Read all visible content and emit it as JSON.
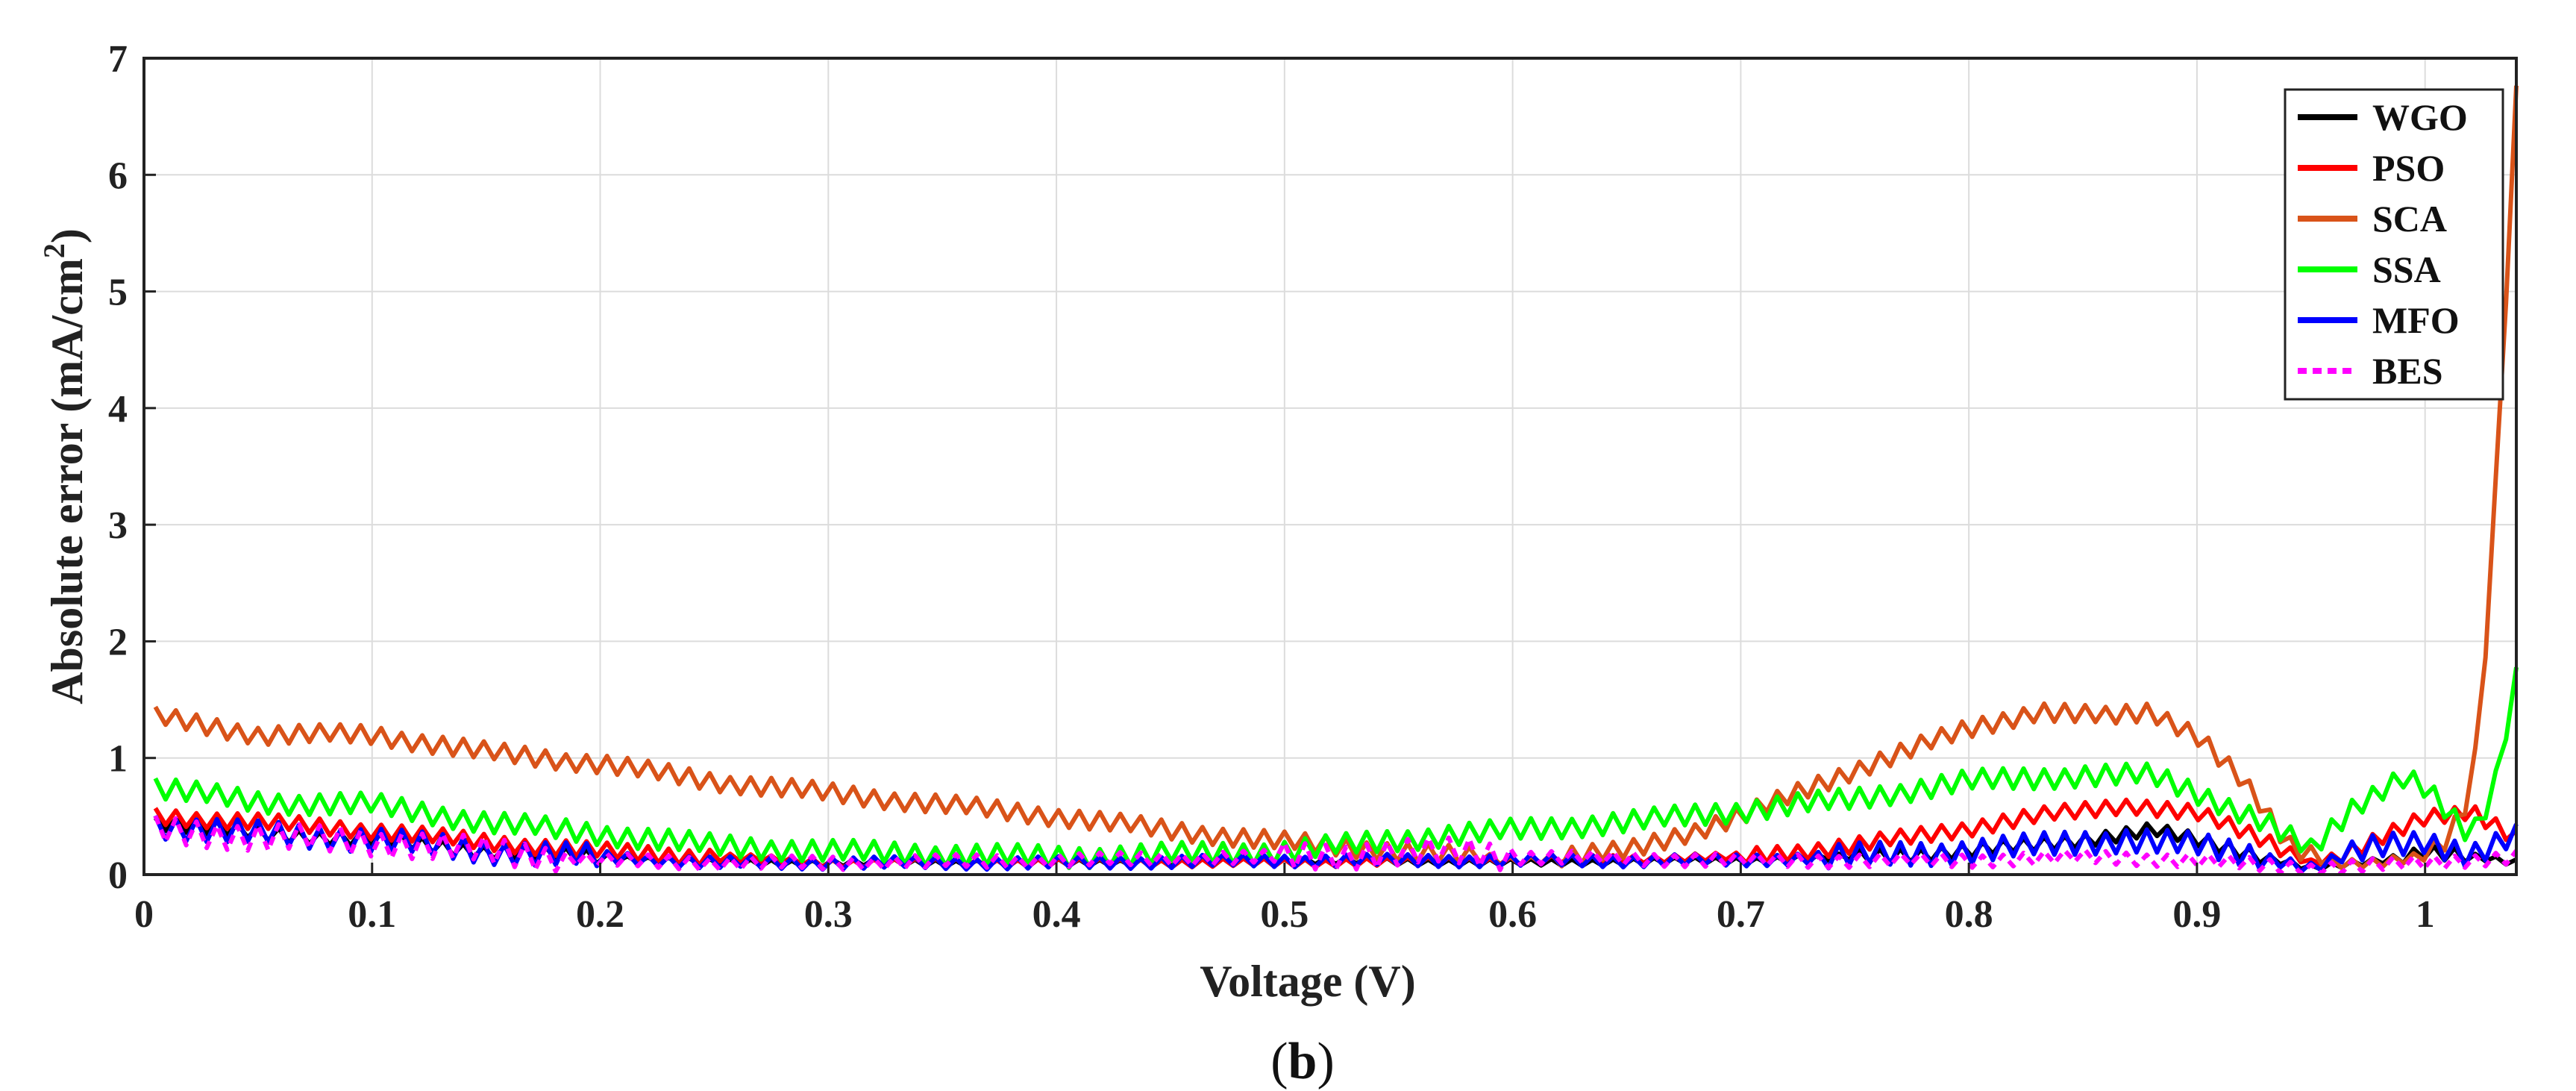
{
  "chart_data": {
    "type": "line",
    "title": "",
    "xlabel": "Voltage (V)",
    "ylabel_main": "Absolute error  (mA/cm",
    "ylabel_sup": "2",
    "ylabel_close": ")",
    "xlim": [
      0,
      1.04
    ],
    "ylim": [
      0,
      7
    ],
    "xticks": [
      0,
      0.1,
      0.2,
      0.3,
      0.4,
      0.5,
      0.6,
      0.7,
      0.8,
      0.9,
      1
    ],
    "xtick_labels": [
      "0",
      "0.1",
      "0.2",
      "0.3",
      "0.4",
      "0.5",
      "0.6",
      "0.7",
      "0.8",
      "0.9",
      "1"
    ],
    "yticks": [
      0,
      1,
      2,
      3,
      4,
      5,
      6,
      7
    ],
    "ytick_labels": [
      "0",
      "1",
      "2",
      "3",
      "4",
      "5",
      "6",
      "7"
    ],
    "grid": true,
    "legend_position": "top-right",
    "caption_open": "(",
    "caption_letter": "b",
    "caption_close": ")",
    "series": [
      {
        "name": "WGO",
        "color": "#000000",
        "dashed": false,
        "x": [
          0.005,
          0.05,
          0.1,
          0.15,
          0.2,
          0.25,
          0.3,
          0.4,
          0.5,
          0.6,
          0.7,
          0.75,
          0.8,
          0.85,
          0.87,
          0.88,
          0.9,
          0.93,
          0.95,
          0.98,
          1.0,
          1.02,
          1.04
        ],
        "y": [
          0.45,
          0.35,
          0.3,
          0.2,
          0.15,
          0.1,
          0.1,
          0.1,
          0.12,
          0.1,
          0.12,
          0.15,
          0.2,
          0.3,
          0.35,
          0.38,
          0.3,
          0.15,
          0.05,
          0.12,
          0.2,
          0.15,
          0.1
        ]
      },
      {
        "name": "PSO",
        "color": "#ff0000",
        "dashed": false,
        "x": [
          0.005,
          0.05,
          0.1,
          0.15,
          0.2,
          0.25,
          0.3,
          0.4,
          0.5,
          0.6,
          0.7,
          0.75,
          0.8,
          0.83,
          0.87,
          0.9,
          0.93,
          0.95,
          0.97,
          1.0,
          1.02,
          1.04
        ],
        "y": [
          0.5,
          0.45,
          0.38,
          0.28,
          0.2,
          0.15,
          0.1,
          0.1,
          0.1,
          0.12,
          0.15,
          0.25,
          0.4,
          0.5,
          0.6,
          0.52,
          0.3,
          0.1,
          0.2,
          0.5,
          0.55,
          0.3
        ]
      },
      {
        "name": "SCA",
        "color": "#d95319",
        "dashed": false,
        "x": [
          0.005,
          0.02,
          0.05,
          0.1,
          0.15,
          0.2,
          0.25,
          0.3,
          0.35,
          0.4,
          0.45,
          0.5,
          0.55,
          0.6,
          0.65,
          0.7,
          0.75,
          0.8,
          0.83,
          0.86,
          0.88,
          0.9,
          0.92,
          0.94,
          0.96,
          0.98,
          1.0,
          1.01,
          1.02,
          1.025,
          1.03,
          1.035,
          1.04
        ],
        "y": [
          1.35,
          1.3,
          1.2,
          1.2,
          1.05,
          0.95,
          0.8,
          0.7,
          0.6,
          0.5,
          0.38,
          0.28,
          0.2,
          0.12,
          0.2,
          0.5,
          0.9,
          1.25,
          1.4,
          1.35,
          1.4,
          1.2,
          0.8,
          0.25,
          0.1,
          0.1,
          0.15,
          0.3,
          0.7,
          1.5,
          3.0,
          4.8,
          6.7
        ]
      },
      {
        "name": "SSA",
        "color": "#00ff00",
        "dashed": false,
        "x": [
          0.005,
          0.05,
          0.1,
          0.15,
          0.2,
          0.25,
          0.3,
          0.4,
          0.5,
          0.55,
          0.6,
          0.65,
          0.7,
          0.75,
          0.8,
          0.85,
          0.88,
          0.9,
          0.93,
          0.95,
          0.97,
          0.99,
          1.0,
          1.02,
          1.03,
          1.04
        ],
        "y": [
          0.75,
          0.62,
          0.6,
          0.45,
          0.35,
          0.25,
          0.2,
          0.15,
          0.2,
          0.3,
          0.38,
          0.45,
          0.55,
          0.65,
          0.8,
          0.85,
          0.85,
          0.7,
          0.45,
          0.2,
          0.6,
          0.85,
          0.75,
          0.3,
          0.7,
          1.7
        ]
      },
      {
        "name": "MFO",
        "color": "#0000ff",
        "dashed": false,
        "x": [
          0.005,
          0.05,
          0.1,
          0.15,
          0.2,
          0.25,
          0.3,
          0.4,
          0.5,
          0.6,
          0.7,
          0.8,
          0.85,
          0.87,
          0.9,
          0.93,
          0.95,
          0.98,
          1.0,
          1.02,
          1.04
        ],
        "y": [
          0.42,
          0.35,
          0.3,
          0.2,
          0.15,
          0.1,
          0.1,
          0.1,
          0.12,
          0.12,
          0.12,
          0.2,
          0.28,
          0.3,
          0.25,
          0.15,
          0.05,
          0.25,
          0.3,
          0.15,
          0.32
        ]
      },
      {
        "name": "BES",
        "color": "#ff00ff",
        "dashed": true,
        "x": [
          0.005,
          0.05,
          0.1,
          0.15,
          0.2,
          0.25,
          0.3,
          0.4,
          0.5,
          0.58,
          0.6,
          0.7,
          0.8,
          0.85,
          0.9,
          0.95,
          1.0,
          1.04
        ],
        "y": [
          0.38,
          0.32,
          0.28,
          0.2,
          0.12,
          0.1,
          0.1,
          0.12,
          0.15,
          0.2,
          0.15,
          0.12,
          0.12,
          0.15,
          0.12,
          0.05,
          0.1,
          0.15
        ]
      }
    ]
  }
}
